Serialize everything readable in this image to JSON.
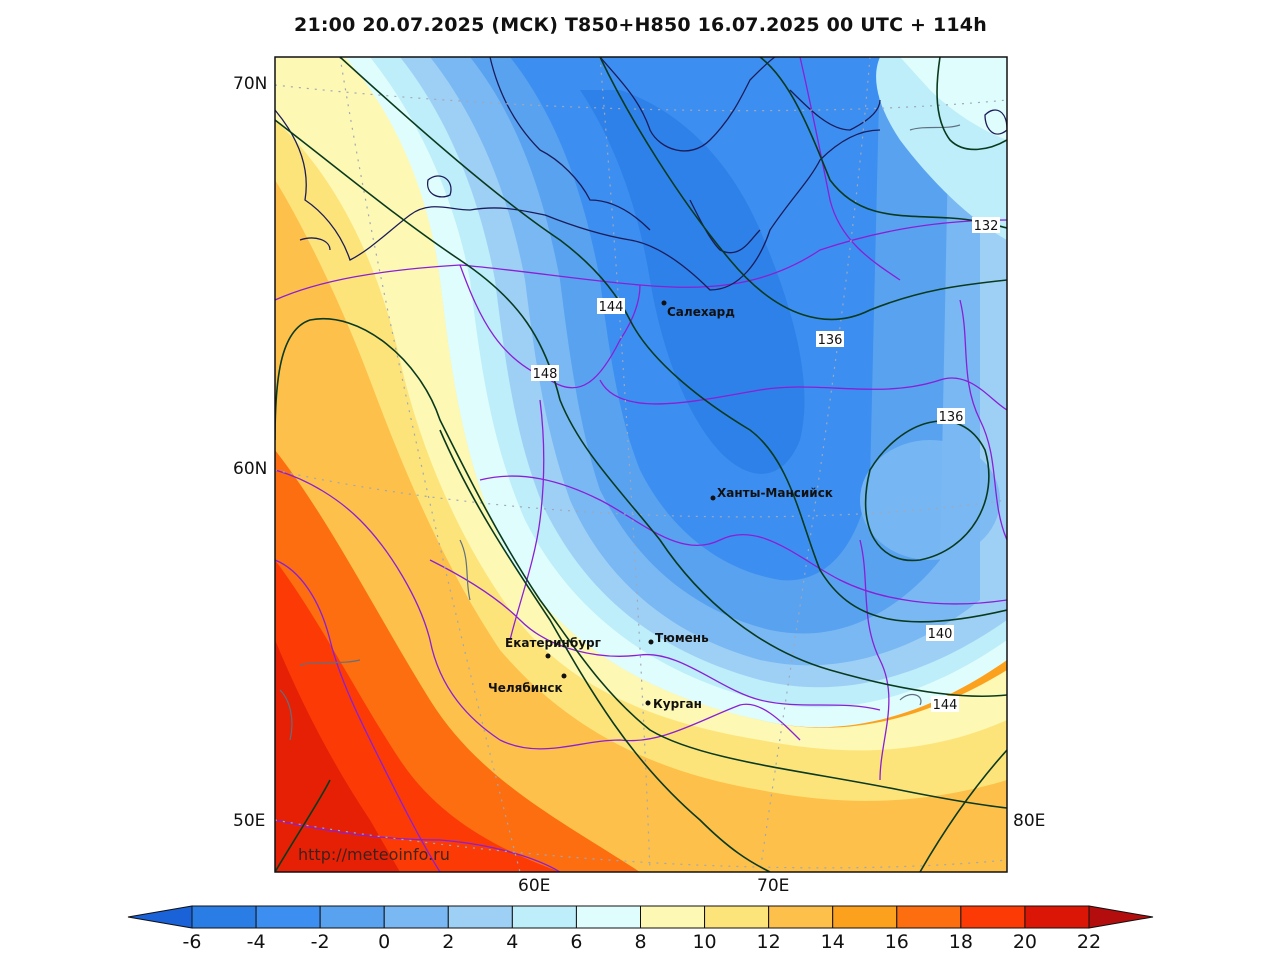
{
  "title": "21:00 20.07.2025 (МСК) T850+H850 16.07.2025 00 UTC + 114h",
  "axes": {
    "lat_labels": [
      "70N",
      "60N",
      "50E"
    ],
    "lon_labels": [
      "60E",
      "70E",
      "80E"
    ]
  },
  "cities": [
    {
      "name": "Салехард"
    },
    {
      "name": "Ханты-Мансийск"
    },
    {
      "name": "Тюмень"
    },
    {
      "name": "Екатеринбург"
    },
    {
      "name": "Челябинск"
    },
    {
      "name": "Курган"
    }
  ],
  "contour_labels": [
    "144",
    "148",
    "136",
    "136",
    "132",
    "140",
    "144"
  ],
  "watermark": "http://meteoinfo.ru",
  "colorbar": {
    "ticks": [
      "-6",
      "-4",
      "-2",
      "0",
      "2",
      "4",
      "6",
      "8",
      "10",
      "12",
      "14",
      "16",
      "18",
      "20",
      "22"
    ],
    "colors": [
      "#2b7de6",
      "#3c8ff0",
      "#58a2f0",
      "#7ab8f3",
      "#9ed0f6",
      "#bdeefa",
      "#e0fdfd",
      "#fdf8b4",
      "#fde47a",
      "#fdc04a",
      "#fca11e",
      "#fc6e10",
      "#fc3a06",
      "#dc1606"
    ],
    "low_color": "#1a62d8",
    "high_color": "#b40d0d"
  }
}
